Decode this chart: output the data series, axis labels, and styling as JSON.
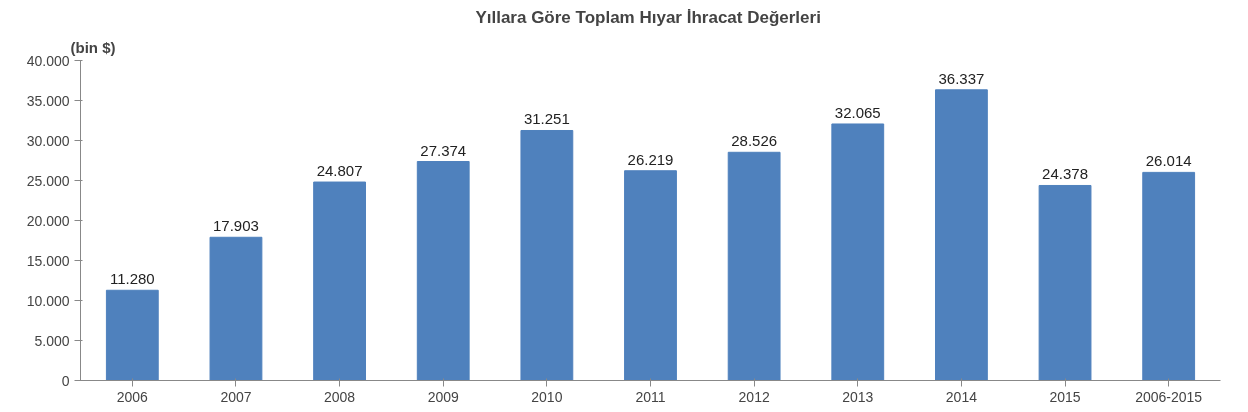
{
  "chart_data": {
    "type": "bar",
    "title": "Yıllara  Göre Toplam Hıyar İhracat Değerleri",
    "ylabel": "(bin $)",
    "categories": [
      "2006",
      "2007",
      "2008",
      "2009",
      "2010",
      "2011",
      "2012",
      "2013",
      "2014",
      "2015",
      "2006-2015"
    ],
    "values": [
      11280,
      17903,
      24807,
      27374,
      31251,
      26219,
      28526,
      32065,
      36337,
      24378,
      26014
    ],
    "value_labels": [
      "11.280",
      "17.903",
      "24.807",
      "27.374",
      "31.251",
      "26.219",
      "28.526",
      "32.065",
      "36.337",
      "24.378",
      "26.014"
    ],
    "color": "#4f81bd",
    "ylim": [
      0,
      40000
    ],
    "yticks": [
      0,
      {
        "value": 5000,
        "label": "5.000"
      },
      {
        "value": 10000,
        "label": "10.000"
      },
      {
        "value": 15000,
        "label": "15.000"
      },
      {
        "value": 20000,
        "label": "20.000"
      },
      {
        "value": 25000,
        "label": "25.000"
      },
      {
        "value": 30000,
        "label": "30.000"
      },
      {
        "value": 35000,
        "label": "35.000"
      },
      {
        "value": 40000,
        "label": "40.000"
      }
    ],
    "grid": false
  }
}
